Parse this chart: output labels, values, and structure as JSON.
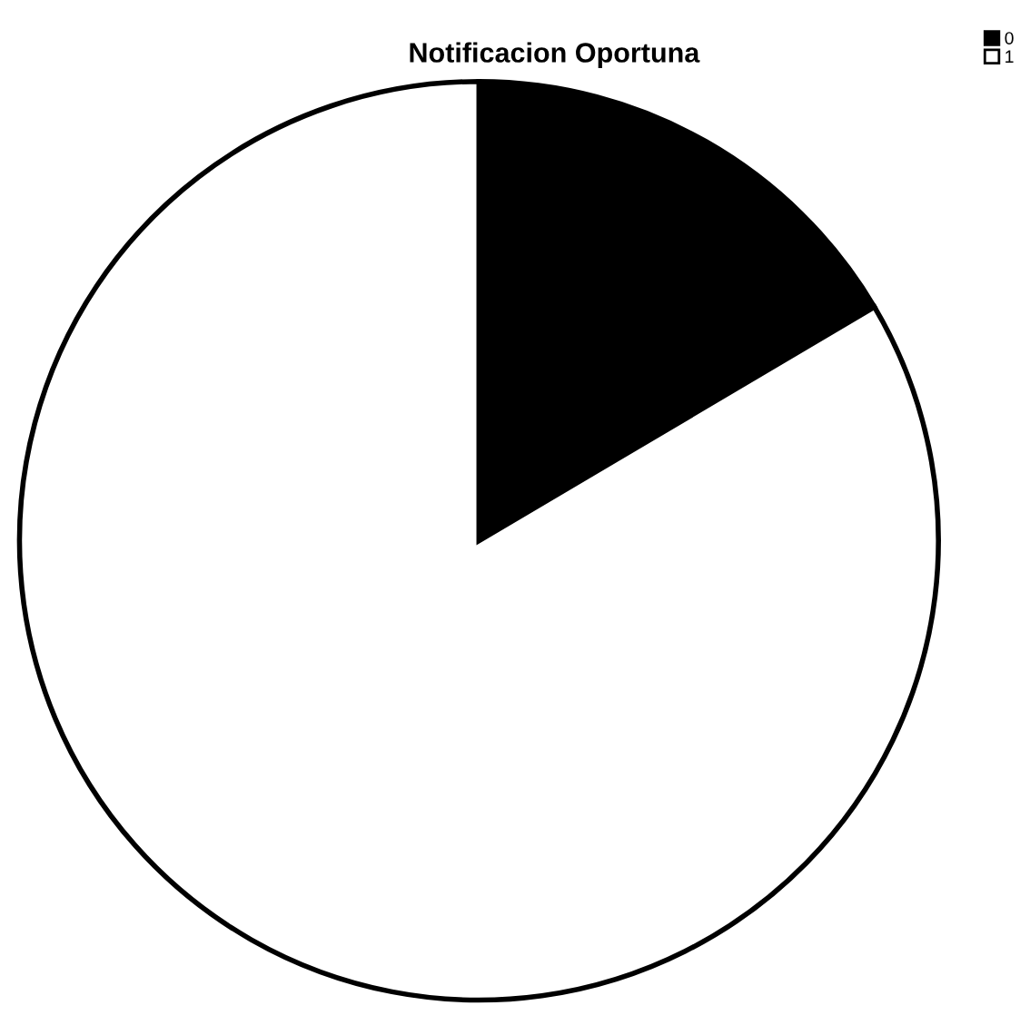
{
  "chart_data": {
    "type": "pie",
    "title": "Notificacion Oportuna",
    "categories": [
      "0",
      "1"
    ],
    "values": [
      16.5,
      83.5
    ],
    "colors": [
      "#000000",
      "#ffffff"
    ],
    "legend": "top right"
  }
}
